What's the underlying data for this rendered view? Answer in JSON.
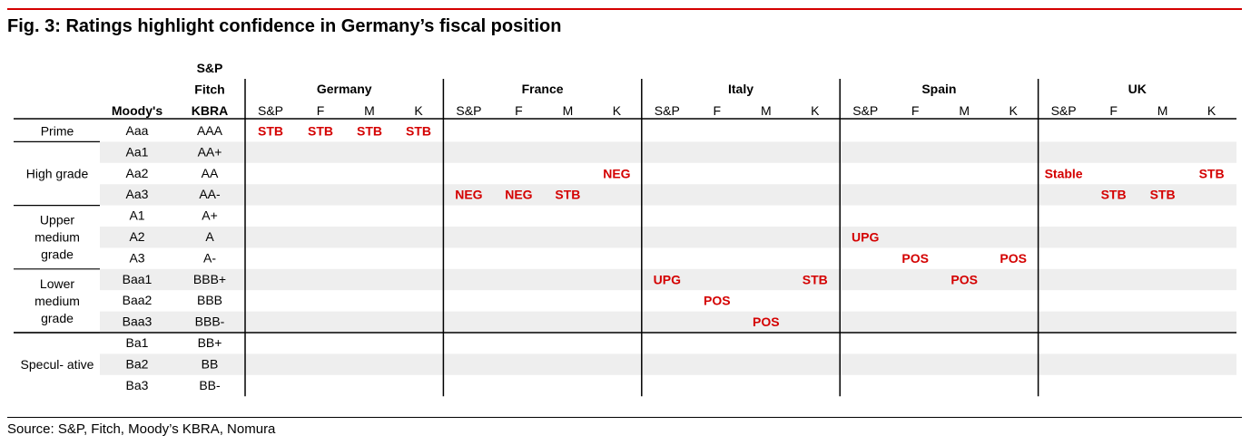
{
  "title": "Fig. 3: Ratings highlight confidence in Germany’s fiscal position",
  "source": "Source: S&P, Fitch, Moody’s KBRA, Nomura",
  "colors": {
    "accent": "#d40000",
    "band": "#eeeeee",
    "rule": "#000000"
  },
  "chart_data": {
    "type": "table",
    "header": {
      "moodys": "Moody's",
      "agency_lines": [
        "S&P",
        "Fitch",
        "KBRA"
      ]
    },
    "countries": [
      "Germany",
      "France",
      "Italy",
      "Spain",
      "UK"
    ],
    "agency_cols": [
      "S&P",
      "F",
      "M",
      "K"
    ],
    "groups": [
      {
        "name": "Prime",
        "rows": 1
      },
      {
        "name": "High grade",
        "rows": 3
      },
      {
        "name": "Upper medium grade",
        "rows": 3
      },
      {
        "name": "Lower medium grade",
        "rows": 3
      },
      {
        "name": "Specul- ative",
        "rows": 3
      }
    ],
    "rows": [
      {
        "moodys": "Aaa",
        "sp": "AAA"
      },
      {
        "moodys": "Aa1",
        "sp": "AA+"
      },
      {
        "moodys": "Aa2",
        "sp": "AA"
      },
      {
        "moodys": "Aa3",
        "sp": "AA-"
      },
      {
        "moodys": "A1",
        "sp": "A+"
      },
      {
        "moodys": "A2",
        "sp": "A"
      },
      {
        "moodys": "A3",
        "sp": "A-"
      },
      {
        "moodys": "Baa1",
        "sp": "BBB+"
      },
      {
        "moodys": "Baa2",
        "sp": "BBB"
      },
      {
        "moodys": "Baa3",
        "sp": "BBB-"
      },
      {
        "moodys": "Ba1",
        "sp": "BB+"
      },
      {
        "moodys": "Ba2",
        "sp": "BB"
      },
      {
        "moodys": "Ba3",
        "sp": "BB-"
      }
    ],
    "entries": [
      {
        "country": "Germany",
        "agency": "S&P",
        "row": "Aaa",
        "label": "STB"
      },
      {
        "country": "Germany",
        "agency": "F",
        "row": "Aaa",
        "label": "STB"
      },
      {
        "country": "Germany",
        "agency": "M",
        "row": "Aaa",
        "label": "STB"
      },
      {
        "country": "Germany",
        "agency": "K",
        "row": "Aaa",
        "label": "STB"
      },
      {
        "country": "France",
        "agency": "K",
        "row": "Aa2",
        "label": "NEG"
      },
      {
        "country": "France",
        "agency": "S&P",
        "row": "Aa3",
        "label": "NEG"
      },
      {
        "country": "France",
        "agency": "F",
        "row": "Aa3",
        "label": "NEG"
      },
      {
        "country": "France",
        "agency": "M",
        "row": "Aa3",
        "label": "STB"
      },
      {
        "country": "Italy",
        "agency": "S&P",
        "row": "Baa1",
        "label": "UPG"
      },
      {
        "country": "Italy",
        "agency": "K",
        "row": "Baa1",
        "label": "STB"
      },
      {
        "country": "Italy",
        "agency": "F",
        "row": "Baa2",
        "label": "POS"
      },
      {
        "country": "Italy",
        "agency": "M",
        "row": "Baa3",
        "label": "POS"
      },
      {
        "country": "Spain",
        "agency": "S&P",
        "row": "A2",
        "label": "UPG"
      },
      {
        "country": "Spain",
        "agency": "F",
        "row": "A3",
        "label": "POS"
      },
      {
        "country": "Spain",
        "agency": "K",
        "row": "A3",
        "label": "POS"
      },
      {
        "country": "Spain",
        "agency": "M",
        "row": "Baa1",
        "label": "POS"
      },
      {
        "country": "UK",
        "agency": "S&P",
        "row": "Aa2",
        "label": "Stable"
      },
      {
        "country": "UK",
        "agency": "K",
        "row": "Aa2",
        "label": "STB"
      },
      {
        "country": "UK",
        "agency": "F",
        "row": "Aa3",
        "label": "STB"
      },
      {
        "country": "UK",
        "agency": "M",
        "row": "Aa3",
        "label": "STB"
      }
    ]
  }
}
